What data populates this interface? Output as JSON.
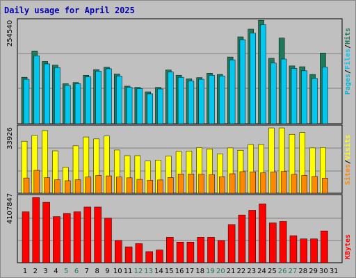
{
  "title": "Daily usage for April 2025",
  "colors": {
    "hits": "#1f7a5c",
    "files": "#00c8f0",
    "pages": "#00b8d8",
    "visits": "#ffff00",
    "sites": "#ff8800",
    "kbytes": "#ff0000",
    "weekend_day": "#1f7a5c",
    "weekday": "#000000",
    "title": "#0000b0"
  },
  "chart_data": [
    {
      "type": "bar",
      "panel": "hits-files-pages",
      "legend": [
        "Pages",
        "/",
        "Files",
        "/",
        "Hits"
      ],
      "ylabel_max": "254540",
      "ylim": [
        0,
        254540
      ],
      "categories": [
        "1",
        "2",
        "3",
        "4",
        "5",
        "6",
        "7",
        "8",
        "9",
        "10",
        "11",
        "12",
        "13",
        "14",
        "15",
        "16",
        "17",
        "18",
        "19",
        "20",
        "21",
        "22",
        "23",
        "24",
        "25",
        "26",
        "27",
        "28",
        "29",
        "30",
        "31"
      ],
      "series": [
        {
          "name": "Hits",
          "values": [
            115000,
            180000,
            154000,
            145000,
            99000,
            102000,
            120000,
            134000,
            140000,
            123000,
            93000,
            90000,
            79000,
            90000,
            133000,
            120000,
            111000,
            114000,
            125000,
            122000,
            165000,
            215000,
            234000,
            256000,
            162000,
            212000,
            143000,
            141000,
            122000,
            175000,
            0
          ]
        },
        {
          "name": "Files",
          "values": [
            110000,
            168000,
            148000,
            139000,
            95000,
            99000,
            116000,
            130000,
            136000,
            118000,
            90000,
            87000,
            74000,
            86000,
            128000,
            115000,
            106000,
            110000,
            120000,
            118000,
            158000,
            208000,
            224000,
            245000,
            150000,
            160000,
            137000,
            131000,
            112000,
            140000,
            0
          ]
        }
      ]
    },
    {
      "type": "bar",
      "panel": "sites-visits",
      "legend": [
        "Sites",
        "/",
        "Visits"
      ],
      "ylabel_max": "33926",
      "ylim": [
        0,
        33926
      ],
      "categories": [
        "1",
        "2",
        "3",
        "4",
        "5",
        "6",
        "7",
        "8",
        "9",
        "10",
        "11",
        "12",
        "13",
        "14",
        "15",
        "16",
        "17",
        "18",
        "19",
        "20",
        "21",
        "22",
        "23",
        "24",
        "25",
        "26",
        "27",
        "28",
        "29",
        "30",
        "31"
      ],
      "series": [
        {
          "name": "Visits",
          "values": [
            27000,
            30000,
            32500,
            22000,
            13500,
            24600,
            29200,
            28200,
            29700,
            22400,
            19500,
            19500,
            16700,
            17200,
            19300,
            21700,
            21900,
            23600,
            23000,
            20400,
            23500,
            22300,
            25300,
            25300,
            33900,
            33900,
            30600,
            31500,
            23500,
            23700,
            0
          ]
        },
        {
          "name": "Sites",
          "values": [
            7900,
            11900,
            8100,
            7000,
            6500,
            7000,
            8400,
            9200,
            9000,
            8400,
            8000,
            7200,
            6700,
            6900,
            8200,
            10000,
            10000,
            9900,
            9700,
            8600,
            10100,
            11200,
            11100,
            10600,
            11100,
            11300,
            9800,
            9200,
            8700,
            7800,
            0
          ]
        }
      ]
    },
    {
      "type": "bar",
      "panel": "kbytes",
      "legend": [
        "KBytes"
      ],
      "ylabel_max": "4107847",
      "ylim": [
        0,
        4107847
      ],
      "categories": [
        "1",
        "2",
        "3",
        "4",
        "5",
        "6",
        "7",
        "8",
        "9",
        "10",
        "11",
        "12",
        "13",
        "14",
        "15",
        "16",
        "17",
        "18",
        "19",
        "20",
        "21",
        "22",
        "23",
        "24",
        "25",
        "26",
        "27",
        "28",
        "29",
        "30",
        "31"
      ],
      "series": [
        {
          "name": "KBytes",
          "values": [
            3200000,
            4100000,
            3800000,
            2900000,
            3100000,
            3200000,
            3500000,
            3500000,
            2800000,
            1400000,
            1000000,
            1200000,
            700000,
            800000,
            1600000,
            1300000,
            1300000,
            1600000,
            1600000,
            1400000,
            2400000,
            3000000,
            3300000,
            3700000,
            2500000,
            2600000,
            1700000,
            1500000,
            1500000,
            2000000,
            0
          ]
        }
      ]
    }
  ],
  "weekend_days": [
    "5",
    "6",
    "12",
    "13",
    "19",
    "20",
    "26",
    "27"
  ]
}
